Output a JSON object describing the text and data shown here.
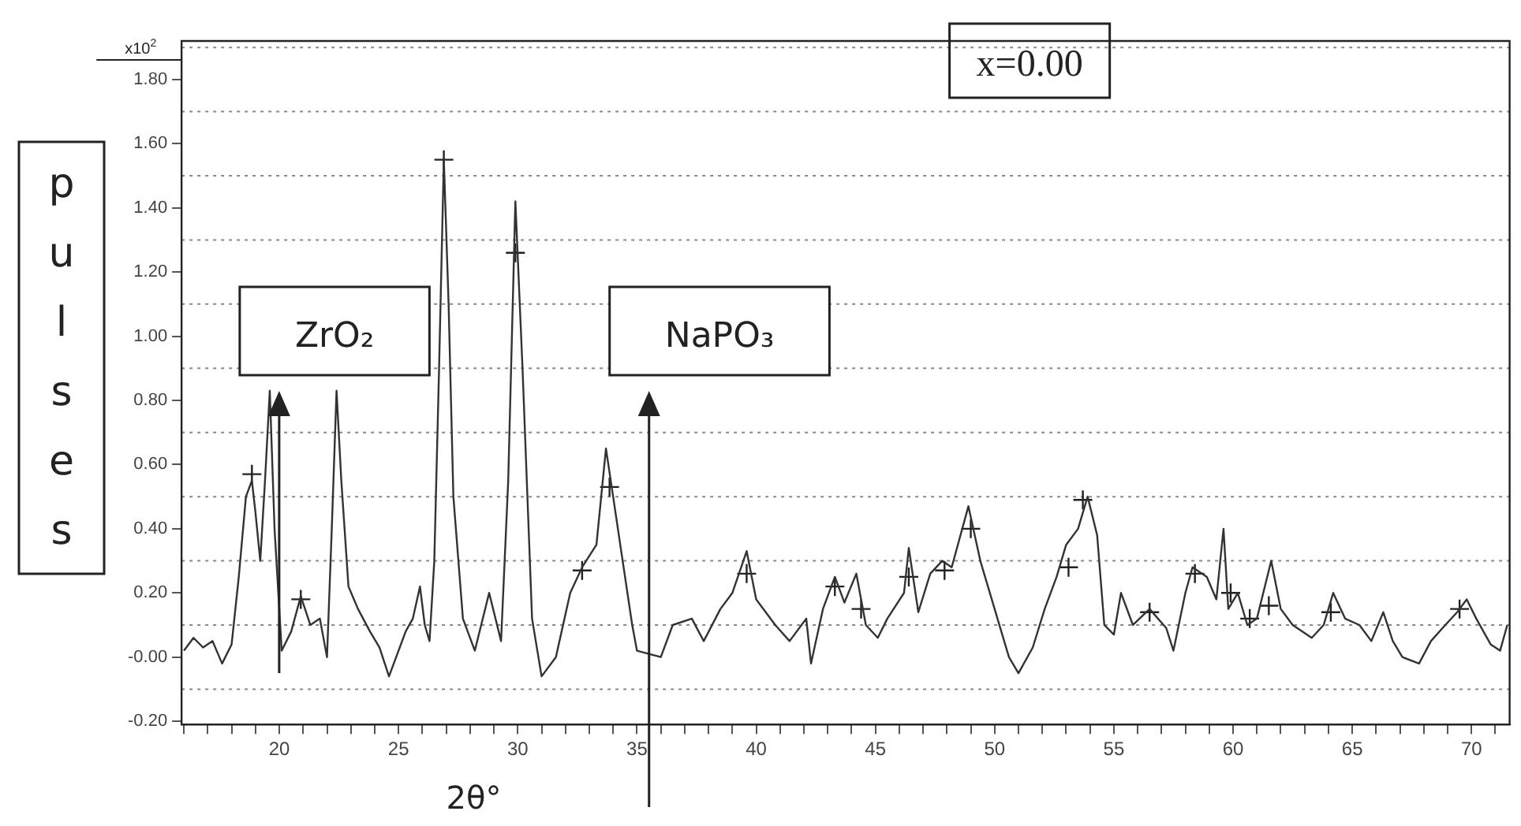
{
  "chart_data": {
    "type": "line",
    "ylabel": "pulses",
    "xlabel": "2θ°",
    "annotations": [
      "x=0.00",
      "x10$^{2}$",
      "ZrO₂",
      "NaPO₃"
    ],
    "x": [
      16,
      16.4,
      16.8,
      17.2,
      17.6,
      18.0,
      18.3,
      18.6,
      18.85,
      19.0,
      19.2,
      19.4,
      19.6,
      19.8,
      20.1,
      20.5,
      20.9,
      21.3,
      21.7,
      22.0,
      22.2,
      22.4,
      22.6,
      22.9,
      23.3,
      23.8,
      24.2,
      24.6,
      25.0,
      25.3,
      25.6,
      25.9,
      26.1,
      26.3,
      26.5,
      26.7,
      26.9,
      27.1,
      27.3,
      27.7,
      28.2,
      28.8,
      29.3,
      29.6,
      29.9,
      30.2,
      30.6,
      31.0,
      31.6,
      32.2,
      32.7,
      33.3,
      33.7,
      34.0,
      34.4,
      34.8,
      35.0,
      36.0,
      36.5,
      37.3,
      37.8,
      38.5,
      39.0,
      39.6,
      40.0,
      40.8,
      41.4,
      42.1,
      42.3,
      42.8,
      43.3,
      43.7,
      44.2,
      44.6,
      45.1,
      45.5,
      46.2,
      46.4,
      46.8,
      47.3,
      47.8,
      48.2,
      48.9,
      49.4,
      50.0,
      50.6,
      51.0,
      51.6,
      52.1,
      52.6,
      53.0,
      53.5,
      53.9,
      54.3,
      54.6,
      55.0,
      55.3,
      55.8,
      56.5,
      57.2,
      57.5,
      58.0,
      58.3,
      58.9,
      59.3,
      59.6,
      59.8,
      60.2,
      60.6,
      61.0,
      61.6,
      62.0,
      62.5,
      63.3,
      63.8,
      64.2,
      64.7,
      65.3,
      65.8,
      66.3,
      66.7,
      67.1,
      67.8,
      68.3,
      68.9,
      69.4,
      69.8,
      70.2,
      70.8,
      71.2,
      71.5
    ],
    "series": [
      {
        "color": "#333333",
        "values": [
          0.02,
          0.06,
          0.03,
          0.05,
          -0.02,
          0.04,
          0.25,
          0.5,
          0.55,
          0.45,
          0.3,
          0.55,
          0.83,
          0.4,
          0.02,
          0.08,
          0.19,
          0.1,
          0.12,
          0.0,
          0.4,
          0.83,
          0.55,
          0.22,
          0.15,
          0.08,
          0.03,
          -0.06,
          0.02,
          0.08,
          0.12,
          0.22,
          0.1,
          0.05,
          0.3,
          0.9,
          1.55,
          1.1,
          0.5,
          0.12,
          0.02,
          0.2,
          0.05,
          0.55,
          1.42,
          0.9,
          0.12,
          -0.06,
          0.0,
          0.2,
          0.28,
          0.35,
          0.65,
          0.5,
          0.3,
          0.1,
          0.02,
          0.0,
          0.1,
          0.12,
          0.05,
          0.15,
          0.2,
          0.33,
          0.18,
          0.1,
          0.05,
          0.12,
          -0.02,
          0.15,
          0.25,
          0.17,
          0.26,
          0.1,
          0.06,
          0.12,
          0.2,
          0.34,
          0.14,
          0.26,
          0.3,
          0.28,
          0.47,
          0.3,
          0.15,
          0.0,
          -0.05,
          0.03,
          0.15,
          0.25,
          0.35,
          0.4,
          0.5,
          0.38,
          0.1,
          0.07,
          0.2,
          0.1,
          0.15,
          0.09,
          0.02,
          0.2,
          0.28,
          0.25,
          0.18,
          0.4,
          0.15,
          0.2,
          0.1,
          0.12,
          0.3,
          0.15,
          0.1,
          0.06,
          0.1,
          0.2,
          0.12,
          0.1,
          0.05,
          0.14,
          0.05,
          0.0,
          -0.02,
          0.05,
          0.1,
          0.14,
          0.18,
          0.12,
          0.04,
          0.02,
          0.1
        ]
      },
      {
        "type": "scatter",
        "color": "#222222",
        "marker": "cross",
        "x": [
          18.85,
          20.9,
          26.9,
          29.9,
          32.7,
          33.85,
          39.6,
          43.3,
          44.4,
          46.4,
          47.9,
          49.0,
          53.1,
          53.7,
          56.5,
          58.4,
          59.9,
          60.7,
          61.5,
          64.1,
          69.5
        ],
        "values": [
          0.57,
          0.18,
          1.55,
          1.26,
          0.27,
          0.53,
          0.26,
          0.22,
          0.15,
          0.25,
          0.27,
          0.4,
          0.28,
          0.49,
          0.14,
          0.26,
          0.2,
          0.12,
          0.16,
          0.14,
          0.15
        ]
      }
    ],
    "xlim": [
      15.9,
      71.6
    ],
    "ylim": [
      -0.21,
      1.92
    ],
    "xticks": [
      {
        "value": 16,
        "label": null
      },
      {
        "value": 17,
        "label": null
      },
      {
        "value": 18,
        "label": null
      },
      {
        "value": 19,
        "label": null
      },
      20,
      {
        "value": 21,
        "label": null
      },
      {
        "value": 22,
        "label": null
      },
      {
        "value": 23,
        "label": null
      },
      {
        "value": 24,
        "label": null
      },
      25,
      {
        "value": 26,
        "label": null
      },
      {
        "value": 27,
        "label": null
      },
      {
        "value": 28,
        "label": null
      },
      {
        "value": 29,
        "label": null
      },
      30,
      {
        "value": 31,
        "label": null
      },
      {
        "value": 32,
        "label": null
      },
      {
        "value": 33,
        "label": null
      },
      {
        "value": 34,
        "label": null
      },
      35,
      {
        "value": 36,
        "label": null
      },
      {
        "value": 37,
        "label": null
      },
      {
        "value": 38,
        "label": null
      },
      {
        "value": 39,
        "label": null
      },
      40,
      {
        "value": 41,
        "label": null
      },
      {
        "value": 42,
        "label": null
      },
      {
        "value": 43,
        "label": null
      },
      {
        "value": 44,
        "label": null
      },
      45,
      {
        "value": 46,
        "label": null
      },
      {
        "value": 47,
        "label": null
      },
      {
        "value": 48,
        "label": null
      },
      {
        "value": 49,
        "label": null
      },
      50,
      {
        "value": 51,
        "label": null
      },
      {
        "value": 52,
        "label": null
      },
      {
        "value": 53,
        "label": null
      },
      {
        "value": 54,
        "label": null
      },
      55,
      {
        "value": 56,
        "label": null
      },
      {
        "value": 57,
        "label": null
      },
      {
        "value": 58,
        "label": null
      },
      {
        "value": 59,
        "label": null
      },
      60,
      {
        "value": 61,
        "label": null
      },
      {
        "value": 62,
        "label": null
      },
      {
        "value": 63,
        "label": null
      },
      {
        "value": 64,
        "label": null
      },
      65,
      {
        "value": 66,
        "label": null
      },
      {
        "value": 67,
        "label": null
      },
      {
        "value": 68,
        "label": null
      },
      {
        "value": 69,
        "label": null
      },
      70,
      {
        "value": 71,
        "label": null
      }
    ],
    "yticks": [
      {
        "value": -0.2,
        "label": "-0.20"
      },
      {
        "value": 0,
        "label": "-0.00"
      },
      {
        "value": 0.2,
        "label": "0.20"
      },
      {
        "value": 0.4,
        "label": "0.40"
      },
      {
        "value": 0.6,
        "label": "0.60"
      },
      {
        "value": 0.8,
        "label": "0.80"
      },
      {
        "value": 1,
        "label": "1.00"
      },
      {
        "value": 1.2,
        "label": "1.20"
      },
      {
        "value": 1.4,
        "label": "1.40"
      },
      {
        "value": 1.6,
        "label": "1.60"
      },
      {
        "value": 1.8,
        "label": "1.80"
      }
    ],
    "ref_lines": [
      {
        "axis": "y",
        "value": -0.1,
        "color": "#888888",
        "line_style": "dotted"
      },
      {
        "axis": "y",
        "value": 0.1,
        "color": "#888888",
        "line_style": "dotted"
      },
      {
        "axis": "y",
        "value": 0.3,
        "color": "#888888",
        "line_style": "dotted"
      },
      {
        "axis": "y",
        "value": 0.5,
        "color": "#888888",
        "line_style": "dotted"
      },
      {
        "axis": "y",
        "value": 0.7,
        "color": "#888888",
        "line_style": "dotted"
      },
      {
        "axis": "y",
        "value": 0.9,
        "color": "#888888",
        "line_style": "dotted"
      },
      {
        "axis": "y",
        "value": 1.1,
        "color": "#888888",
        "line_style": "dotted"
      },
      {
        "axis": "y",
        "value": 1.3,
        "color": "#888888",
        "line_style": "dotted"
      },
      {
        "axis": "y",
        "value": 1.5,
        "color": "#888888",
        "line_style": "dotted"
      },
      {
        "axis": "y",
        "value": 1.7,
        "color": "#888888",
        "line_style": "dotted"
      },
      {
        "axis": "y",
        "value": 1.9,
        "color": "#888888",
        "line_style": "dotted"
      }
    ],
    "grid": false,
    "legend": false,
    "marker": "none",
    "line_style": "solid"
  }
}
